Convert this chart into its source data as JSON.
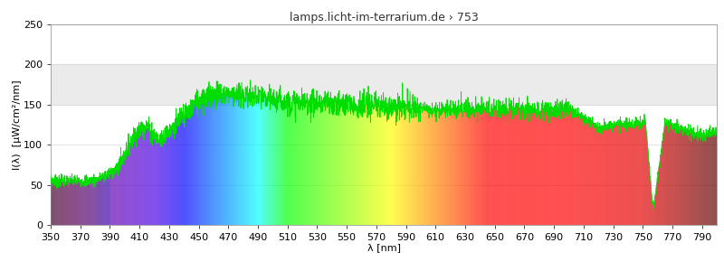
{
  "title": "lamps.licht-im-terrarium.de › 753",
  "xlabel": "λ [nm]",
  "ylabel": "I(λ)  [μW/cm²/nm]",
  "xmin": 350,
  "xmax": 800,
  "ymin": 0,
  "ymax": 250,
  "xticks": [
    350,
    370,
    390,
    410,
    430,
    450,
    470,
    490,
    510,
    530,
    550,
    570,
    590,
    610,
    630,
    650,
    670,
    690,
    710,
    730,
    750,
    770,
    790
  ],
  "yticks": [
    0,
    50,
    100,
    150,
    200,
    250
  ],
  "plot_bg_color": "#ffffff",
  "band_color": "#ebebeb",
  "band_ymin": 150,
  "band_ymax": 200,
  "title_fontsize": 9,
  "axis_label_fontsize": 8,
  "tick_fontsize": 8,
  "figwidth": 8.0,
  "figheight": 3.0,
  "dpi": 100
}
